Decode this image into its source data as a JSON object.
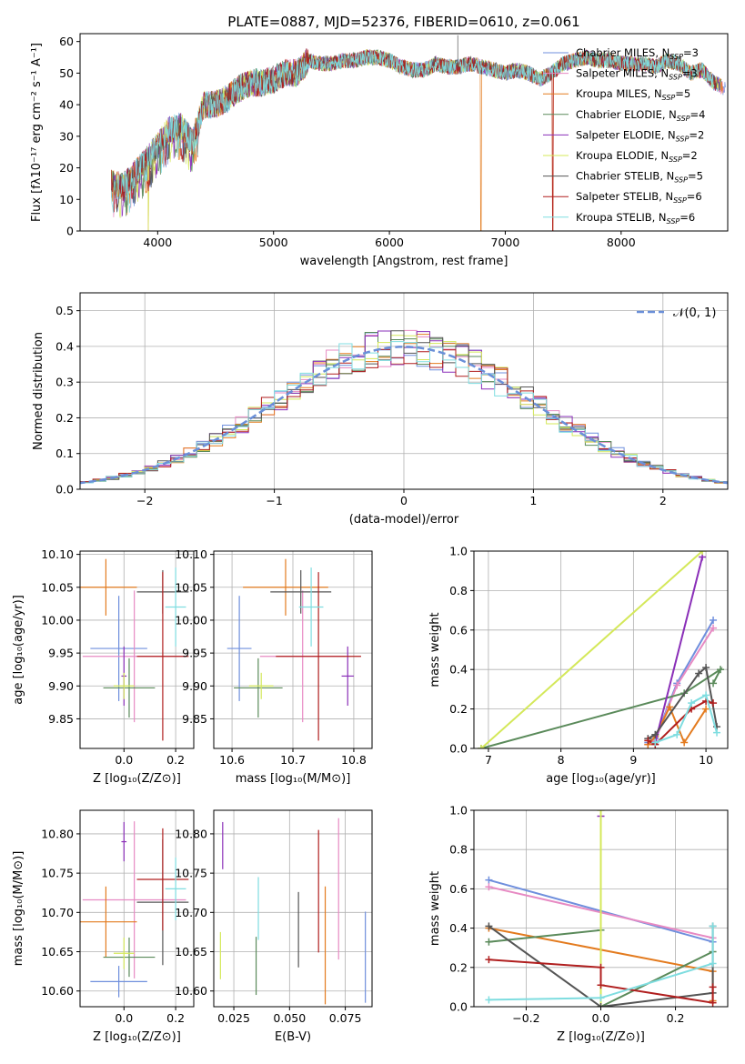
{
  "figure_title": "PLATE=0887, MJD=52376, FIBERID=0610, z=0.061",
  "colors": {
    "chabrier_miles": "#6f8fdd",
    "salpeter_miles": "#e78ac3",
    "kroupa_miles": "#e37b1f",
    "chabrier_elodie": "#5a8a5a",
    "salpeter_elodie": "#8a2fb8",
    "kroupa_elodie": "#d4e85a",
    "chabrier_stelib": "#555555",
    "salpeter_stelib": "#b01e1e",
    "kroupa_stelib": "#7fdde0",
    "normal_curve": "#6a8fd8",
    "grid": "#b0b0b0"
  },
  "legend_entries": [
    {
      "label": "Chabrier MILES, N",
      "sub": "SSP",
      "count": "=3",
      "color_key": "chabrier_miles"
    },
    {
      "label": "Salpeter MILES, N",
      "sub": "SSP",
      "count": "=3",
      "color_key": "salpeter_miles"
    },
    {
      "label": "Kroupa MILES, N",
      "sub": "SSP",
      "count": "=5",
      "color_key": "kroupa_miles"
    },
    {
      "label": "Chabrier ELODIE, N",
      "sub": "SSP",
      "count": "=4",
      "color_key": "chabrier_elodie"
    },
    {
      "label": "Salpeter ELODIE, N",
      "sub": "SSP",
      "count": "=2",
      "color_key": "salpeter_elodie"
    },
    {
      "label": "Kroupa ELODIE, N",
      "sub": "SSP",
      "count": "=2",
      "color_key": "kroupa_elodie"
    },
    {
      "label": "Chabrier STELIB, N",
      "sub": "SSP",
      "count": "=5",
      "color_key": "chabrier_stelib"
    },
    {
      "label": "Salpeter STELIB, N",
      "sub": "SSP",
      "count": "=6",
      "color_key": "salpeter_stelib"
    },
    {
      "label": "Kroupa STELIB, N",
      "sub": "SSP",
      "count": "=6",
      "color_key": "kroupa_stelib"
    }
  ],
  "chart_data": [
    {
      "id": "spectrum",
      "type": "line",
      "xlabel": "wavelength [Angstrom, rest frame]",
      "ylabel": "Flux [fλ10⁻¹⁷ erg cm⁻² s⁻¹ A⁻¹]",
      "xlim": [
        3330,
        8920
      ],
      "ylim": [
        0,
        62.5
      ],
      "xticks": [
        4000,
        5000,
        6000,
        7000,
        8000
      ],
      "yticks": [
        0,
        10,
        20,
        30,
        40,
        50,
        60
      ],
      "grid": false,
      "legend_position": "right",
      "envelope": {
        "x": [
          3600,
          3700,
          3800,
          3900,
          4000,
          4100,
          4200,
          4300,
          4400,
          4500,
          4600,
          4700,
          4800,
          4900,
          5000,
          5100,
          5200,
          5300,
          5400,
          5500,
          5600,
          5700,
          5800,
          5900,
          6000,
          6100,
          6200,
          6300,
          6400,
          6500,
          6600,
          6700,
          6800,
          6900,
          7000,
          7100,
          7200,
          7300,
          7400,
          7500,
          7600,
          7700,
          7800,
          7900,
          8000,
          8100,
          8200,
          8300,
          8400,
          8500,
          8600,
          8700,
          8800,
          8900
        ],
        "y": [
          15,
          14,
          18,
          22,
          27,
          32,
          33,
          28,
          40,
          40,
          42,
          45,
          47,
          47,
          48,
          50,
          50,
          54,
          53,
          53,
          54,
          54,
          55,
          55,
          54,
          52,
          51,
          51,
          53,
          52,
          52,
          53,
          52,
          51,
          50,
          51,
          50,
          48,
          50,
          53,
          54,
          55,
          54,
          54,
          53,
          53,
          53,
          52,
          54,
          53,
          50,
          51,
          47,
          45
        ]
      },
      "dips": [
        {
          "x": 3920,
          "y": 0
        },
        {
          "x": 6790,
          "y": 0
        },
        {
          "x": 7410,
          "y": 0
        }
      ],
      "spike": {
        "x": 6590,
        "y": 62
      }
    },
    {
      "id": "residuals",
      "type": "histogram",
      "xlabel": "(data-model)/error",
      "ylabel": "Normed distribution",
      "xlim": [
        -2.5,
        2.5
      ],
      "ylim": [
        0,
        0.55
      ],
      "xticks": [
        -2,
        -1,
        0,
        1,
        2
      ],
      "yticks": [
        0.0,
        0.1,
        0.2,
        0.3,
        0.4,
        0.5
      ],
      "grid": true,
      "legend": {
        "label": "𝒩(0, 1)",
        "position": "top-right"
      },
      "bin_width": 0.1,
      "mu": 0,
      "sigma": 1
    },
    {
      "id": "z_vs_age",
      "type": "scatter",
      "xlabel": "Z [log₁₀(Z/Z⊙)]",
      "ylabel": "age  [log₁₀(age/yr)]",
      "xlim": [
        -0.17,
        0.27
      ],
      "ylim": [
        9.805,
        10.105
      ],
      "xticks": [
        0.0,
        0.2
      ],
      "yticks": [
        9.85,
        9.9,
        9.95,
        10.0,
        10.05,
        10.1
      ],
      "grid": true,
      "points": [
        {
          "model": "chabrier_miles",
          "x": -0.02,
          "xerr": 0.11,
          "y": 9.957,
          "yerr": 0.08
        },
        {
          "model": "salpeter_miles",
          "x": 0.04,
          "xerr": 0.2,
          "y": 9.945,
          "yerr": 0.1
        },
        {
          "model": "kroupa_miles",
          "x": -0.07,
          "xerr": 0.12,
          "y": 10.05,
          "yerr": 0.043
        },
        {
          "model": "chabrier_elodie",
          "x": 0.02,
          "xerr": 0.1,
          "y": 9.897,
          "yerr": 0.045
        },
        {
          "model": "salpeter_elodie",
          "x": 0.0,
          "xerr": 0.01,
          "y": 9.915,
          "yerr": 0.045
        },
        {
          "model": "kroupa_elodie",
          "x": 0.0,
          "xerr": 0.04,
          "y": 9.9,
          "yerr": 0.02
        },
        {
          "model": "chabrier_stelib",
          "x": 0.15,
          "xerr": 0.1,
          "y": 10.043,
          "yerr": 0.033
        },
        {
          "model": "salpeter_stelib",
          "x": 0.15,
          "xerr": 0.1,
          "y": 9.945,
          "yerr": 0.128
        },
        {
          "model": "kroupa_stelib",
          "x": 0.2,
          "xerr": 0.04,
          "y": 10.02,
          "yerr": 0.06
        }
      ]
    },
    {
      "id": "mass_vs_age",
      "type": "scatter",
      "xlabel": "mass [log₁₀(M/M⊙)]",
      "ylabel": "",
      "xlim": [
        10.57,
        10.83
      ],
      "ylim": [
        9.805,
        10.105
      ],
      "xticks": [
        10.6,
        10.7,
        10.8
      ],
      "yticks": [
        9.85,
        9.9,
        9.95,
        10.0,
        10.05,
        10.1
      ],
      "grid": true,
      "points": [
        {
          "model": "chabrier_miles",
          "x": 10.612,
          "xerr": 0.02,
          "y": 9.957,
          "yerr": 0.08
        },
        {
          "model": "salpeter_miles",
          "x": 10.716,
          "xerr": 0.07,
          "y": 9.945,
          "yerr": 0.1
        },
        {
          "model": "kroupa_miles",
          "x": 10.688,
          "xerr": 0.07,
          "y": 10.05,
          "yerr": 0.043
        },
        {
          "model": "chabrier_elodie",
          "x": 10.643,
          "xerr": 0.04,
          "y": 9.897,
          "yerr": 0.045
        },
        {
          "model": "salpeter_elodie",
          "x": 10.79,
          "xerr": 0.01,
          "y": 9.915,
          "yerr": 0.045
        },
        {
          "model": "kroupa_elodie",
          "x": 10.648,
          "xerr": 0.02,
          "y": 9.9,
          "yerr": 0.02
        },
        {
          "model": "chabrier_stelib",
          "x": 10.713,
          "xerr": 0.05,
          "y": 10.043,
          "yerr": 0.033
        },
        {
          "model": "salpeter_stelib",
          "x": 10.742,
          "xerr": 0.07,
          "y": 9.945,
          "yerr": 0.128
        },
        {
          "model": "kroupa_stelib",
          "x": 10.73,
          "xerr": 0.02,
          "y": 10.02,
          "yerr": 0.06
        }
      ]
    },
    {
      "id": "age_vs_weight",
      "type": "line",
      "xlabel": "age  [log₁₀(age/yr)]",
      "ylabel": "mass weight",
      "xlim": [
        6.8,
        10.3
      ],
      "ylim": [
        0,
        1.0
      ],
      "xticks": [
        7,
        8,
        9,
        10
      ],
      "yticks": [
        0.0,
        0.2,
        0.4,
        0.6,
        0.8,
        1.0
      ],
      "grid": true,
      "series": [
        {
          "model": "chabrier_miles",
          "x": [
            9.2,
            9.3,
            9.6,
            10.1
          ],
          "y": [
            0.03,
            0.05,
            0.33,
            0.65
          ]
        },
        {
          "model": "salpeter_miles",
          "x": [
            9.2,
            9.3,
            9.6,
            10.1
          ],
          "y": [
            0.02,
            0.04,
            0.32,
            0.61
          ]
        },
        {
          "model": "kroupa_miles",
          "x": [
            9.2,
            9.3,
            9.5,
            9.7,
            10.0
          ],
          "y": [
            0.02,
            0.06,
            0.21,
            0.03,
            0.2
          ]
        },
        {
          "model": "chabrier_elodie",
          "x": [
            6.9,
            9.7,
            10.2,
            10.1
          ],
          "y": [
            0.0,
            0.28,
            0.4,
            0.33
          ]
        },
        {
          "model": "salpeter_elodie",
          "x": [
            9.3,
            9.95
          ],
          "y": [
            0.03,
            0.97
          ]
        },
        {
          "model": "kroupa_elodie",
          "x": [
            6.9,
            9.95
          ],
          "y": [
            0.0,
            1.0
          ]
        },
        {
          "model": "chabrier_stelib",
          "x": [
            9.2,
            9.3,
            9.9,
            10.0,
            10.15
          ],
          "y": [
            0.05,
            0.07,
            0.38,
            0.41,
            0.11
          ]
        },
        {
          "model": "salpeter_stelib",
          "x": [
            9.2,
            9.3,
            9.8,
            10.0,
            10.1
          ],
          "y": [
            0.04,
            0.02,
            0.2,
            0.24,
            0.23
          ]
        },
        {
          "model": "kroupa_stelib",
          "x": [
            9.3,
            9.6,
            9.8,
            10.0,
            10.15
          ],
          "y": [
            0.03,
            0.07,
            0.23,
            0.27,
            0.08
          ]
        }
      ]
    },
    {
      "id": "mass_vs_z",
      "type": "scatter",
      "xlabel": "Z [log₁₀(Z/Z⊙)]",
      "ylabel": "mass [log₁₀(M/M⊙)]",
      "xlim": [
        -0.17,
        0.27
      ],
      "ylim": [
        10.58,
        10.83
      ],
      "xticks": [
        0.0,
        0.2
      ],
      "yticks": [
        10.6,
        10.65,
        10.7,
        10.75,
        10.8
      ],
      "grid": true,
      "points": [
        {
          "model": "chabrier_miles",
          "x": -0.02,
          "xerr": 0.11,
          "y": 10.612,
          "yerr": 0.02
        },
        {
          "model": "salpeter_miles",
          "x": 0.04,
          "xerr": 0.2,
          "y": 10.716,
          "yerr": 0.1
        },
        {
          "model": "kroupa_miles",
          "x": -0.07,
          "xerr": 0.12,
          "y": 10.688,
          "yerr": 0.045
        },
        {
          "model": "chabrier_elodie",
          "x": 0.02,
          "xerr": 0.1,
          "y": 10.643,
          "yerr": 0.025
        },
        {
          "model": "salpeter_elodie",
          "x": 0.0,
          "xerr": 0.01,
          "y": 10.79,
          "yerr": 0.025
        },
        {
          "model": "kroupa_elodie",
          "x": 0.0,
          "xerr": 0.04,
          "y": 10.648,
          "yerr": 0.02
        },
        {
          "model": "chabrier_stelib",
          "x": 0.15,
          "xerr": 0.1,
          "y": 10.713,
          "yerr": 0.08
        },
        {
          "model": "salpeter_stelib",
          "x": 0.15,
          "xerr": 0.1,
          "y": 10.742,
          "yerr": 0.065
        },
        {
          "model": "kroupa_stelib",
          "x": 0.2,
          "xerr": 0.04,
          "y": 10.73,
          "yerr": 0.04
        }
      ]
    },
    {
      "id": "ebv_vs_mass",
      "type": "scatter",
      "xlabel": "E(B-V)",
      "ylabel": "",
      "xlim": [
        0.016,
        0.087
      ],
      "ylim": [
        10.58,
        10.83
      ],
      "xticks": [
        0.025,
        0.05,
        0.075
      ],
      "yticks": [
        10.6,
        10.65,
        10.7,
        10.75,
        10.8
      ],
      "grid": true,
      "points": [
        {
          "model": "chabrier_miles",
          "x": 0.084,
          "xerr": 0.0,
          "y": 10.643,
          "yerr": 0.058
        },
        {
          "model": "salpeter_miles",
          "x": 0.072,
          "xerr": 0.0,
          "y": 10.73,
          "yerr": 0.09
        },
        {
          "model": "kroupa_miles",
          "x": 0.066,
          "xerr": 0.0,
          "y": 10.658,
          "yerr": 0.075
        },
        {
          "model": "chabrier_elodie",
          "x": 0.035,
          "xerr": 0.0,
          "y": 10.632,
          "yerr": 0.037
        },
        {
          "model": "salpeter_elodie",
          "x": 0.02,
          "xerr": 0.0,
          "y": 10.785,
          "yerr": 0.03
        },
        {
          "model": "kroupa_elodie",
          "x": 0.019,
          "xerr": 0.0,
          "y": 10.645,
          "yerr": 0.03
        },
        {
          "model": "chabrier_stelib",
          "x": 0.054,
          "xerr": 0.0,
          "y": 10.678,
          "yerr": 0.048
        },
        {
          "model": "salpeter_stelib",
          "x": 0.063,
          "xerr": 0.0,
          "y": 10.727,
          "yerr": 0.078
        },
        {
          "model": "kroupa_stelib",
          "x": 0.036,
          "xerr": 0.0,
          "y": 10.705,
          "yerr": 0.04
        }
      ]
    },
    {
      "id": "z_vs_weight",
      "type": "line",
      "xlabel": "Z [log₁₀(Z/Z⊙)]",
      "ylabel": "mass weight",
      "xlim": [
        -0.34,
        0.34
      ],
      "ylim": [
        0,
        1.0
      ],
      "xticks": [
        -0.2,
        0.0,
        0.2
      ],
      "yticks": [
        0.0,
        0.2,
        0.4,
        0.6,
        0.8,
        1.0
      ],
      "grid": true,
      "series": [
        {
          "model": "chabrier_miles",
          "x": [
            -0.3,
            0.3
          ],
          "y": [
            0.645,
            0.33
          ]
        },
        {
          "model": "salpeter_miles",
          "x": [
            -0.3,
            0.3
          ],
          "y": [
            0.61,
            0.35
          ]
        },
        {
          "model": "kroupa_miles",
          "x": [
            -0.3,
            0.3,
            0.3
          ],
          "y": [
            0.4,
            0.18,
            0.03
          ]
        },
        {
          "model": "chabrier_elodie",
          "x": [
            -0.3,
            0.0,
            0.0,
            0.3
          ],
          "y": [
            0.33,
            0.39,
            0.0,
            0.28
          ]
        },
        {
          "model": "salpeter_elodie",
          "x": [
            0.0,
            0.0
          ],
          "y": [
            0.0,
            0.97
          ]
        },
        {
          "model": "kroupa_elodie",
          "x": [
            0.0,
            0.0
          ],
          "y": [
            0.0,
            1.0
          ]
        },
        {
          "model": "chabrier_stelib",
          "x": [
            -0.3,
            0.0,
            0.3,
            0.3
          ],
          "y": [
            0.41,
            0.0,
            0.07,
            0.41
          ]
        },
        {
          "model": "salpeter_stelib",
          "x": [
            -0.3,
            0.0,
            0.0,
            0.3,
            0.3
          ],
          "y": [
            0.24,
            0.2,
            0.11,
            0.02,
            0.1
          ]
        },
        {
          "model": "kroupa_stelib",
          "x": [
            -0.3,
            0.0,
            0.3,
            0.3
          ],
          "y": [
            0.035,
            0.045,
            0.22,
            0.41
          ]
        }
      ]
    }
  ]
}
